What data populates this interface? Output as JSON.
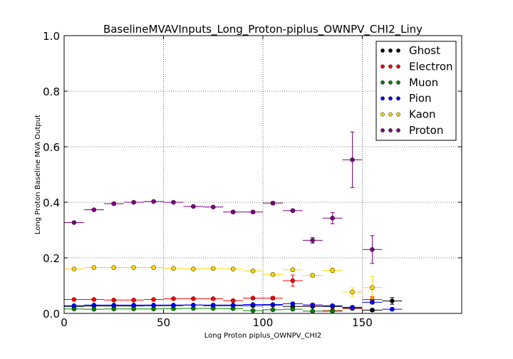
{
  "chart_data": {
    "type": "scatter",
    "title": "BaselineMVAVInputs_Long_Proton-piplus_OWNPV_CHI2_Liny",
    "xlabel": "Long Proton piplus_OWNPV_CHI2",
    "ylabel": "Long Proton Baseline MVA Output",
    "xlim": [
      0,
      200
    ],
    "ylim": [
      0,
      1.0
    ],
    "x_ticks": [
      0,
      50,
      100,
      150
    ],
    "x_tick_labels": [
      "0",
      "50",
      "100",
      "150"
    ],
    "y_ticks": [
      0.0,
      0.2,
      0.4,
      0.6,
      0.8,
      1.0
    ],
    "y_tick_labels": [
      "0.0",
      "0.2",
      "0.4",
      "0.6",
      "0.8",
      "1.0"
    ],
    "grid": true,
    "legend_position": "top-right",
    "bin_half_width": 5,
    "series": [
      {
        "name": "Ghost",
        "color": "#000000",
        "x": [
          5,
          15,
          25,
          35,
          45,
          55,
          65,
          75,
          85,
          95,
          105,
          115,
          125,
          135,
          145,
          155,
          165
        ],
        "y": [
          0.025,
          0.027,
          0.027,
          0.027,
          0.028,
          0.028,
          0.03,
          0.028,
          0.028,
          0.028,
          0.03,
          0.025,
          0.025,
          0.025,
          0.018,
          0.012,
          0.045
        ],
        "err": [
          0.002,
          0.002,
          0.002,
          0.002,
          0.002,
          0.002,
          0.002,
          0.002,
          0.002,
          0.003,
          0.003,
          0.003,
          0.003,
          0.004,
          0.005,
          0.005,
          0.012
        ]
      },
      {
        "name": "Electron",
        "color": "#ff0000",
        "x": [
          5,
          15,
          25,
          35,
          45,
          55,
          65,
          75,
          85,
          95,
          105,
          115,
          125,
          135,
          145,
          155
        ],
        "y": [
          0.05,
          0.05,
          0.048,
          0.048,
          0.05,
          0.053,
          0.053,
          0.053,
          0.046,
          0.055,
          0.055,
          0.118,
          0.03,
          0.01,
          0.02,
          0.05
        ],
        "err": [
          0.002,
          0.002,
          0.002,
          0.002,
          0.002,
          0.002,
          0.002,
          0.003,
          0.003,
          0.004,
          0.005,
          0.02,
          0.006,
          0.005,
          0.006,
          0.01
        ]
      },
      {
        "name": "Muon",
        "color": "#008000",
        "x": [
          5,
          15,
          25,
          35,
          45,
          55,
          65,
          75,
          85,
          95,
          105,
          115,
          125,
          135
        ],
        "y": [
          0.016,
          0.015,
          0.016,
          0.016,
          0.016,
          0.017,
          0.018,
          0.018,
          0.017,
          0.01,
          0.013,
          0.015,
          0.008,
          0.008
        ],
        "err": [
          0.002,
          0.002,
          0.002,
          0.002,
          0.002,
          0.002,
          0.002,
          0.002,
          0.002,
          0.003,
          0.003,
          0.003,
          0.003,
          0.003
        ]
      },
      {
        "name": "Pion",
        "color": "#0000ff",
        "x": [
          5,
          15,
          25,
          35,
          45,
          55,
          65,
          75,
          85,
          95,
          105,
          115,
          125,
          135,
          145,
          155,
          165
        ],
        "y": [
          0.028,
          0.03,
          0.03,
          0.03,
          0.03,
          0.03,
          0.03,
          0.03,
          0.03,
          0.032,
          0.032,
          0.035,
          0.03,
          0.028,
          0.022,
          0.04,
          0.015
        ],
        "err": [
          0.002,
          0.002,
          0.002,
          0.002,
          0.002,
          0.002,
          0.002,
          0.002,
          0.002,
          0.002,
          0.002,
          0.003,
          0.003,
          0.004,
          0.005,
          0.006,
          0.005
        ]
      },
      {
        "name": "Kaon",
        "color": "#ffd700",
        "x": [
          5,
          15,
          25,
          35,
          45,
          55,
          65,
          75,
          85,
          95,
          105,
          115,
          125,
          135,
          145,
          155
        ],
        "y": [
          0.16,
          0.165,
          0.165,
          0.165,
          0.165,
          0.162,
          0.16,
          0.162,
          0.16,
          0.153,
          0.14,
          0.157,
          0.137,
          0.155,
          0.077,
          0.093
        ],
        "err": [
          0.003,
          0.003,
          0.003,
          0.003,
          0.003,
          0.003,
          0.003,
          0.003,
          0.003,
          0.004,
          0.005,
          0.006,
          0.006,
          0.008,
          0.015,
          0.04
        ]
      },
      {
        "name": "Proton",
        "color": "#800080",
        "x": [
          5,
          15,
          25,
          35,
          45,
          55,
          65,
          75,
          85,
          95,
          105,
          115,
          125,
          135,
          145,
          155
        ],
        "y": [
          0.327,
          0.373,
          0.395,
          0.4,
          0.403,
          0.4,
          0.385,
          0.383,
          0.365,
          0.365,
          0.397,
          0.37,
          0.263,
          0.343,
          0.553,
          0.23
        ],
        "err": [
          0.003,
          0.003,
          0.003,
          0.003,
          0.003,
          0.003,
          0.003,
          0.003,
          0.004,
          0.004,
          0.005,
          0.005,
          0.01,
          0.02,
          0.1,
          0.05
        ]
      }
    ]
  }
}
